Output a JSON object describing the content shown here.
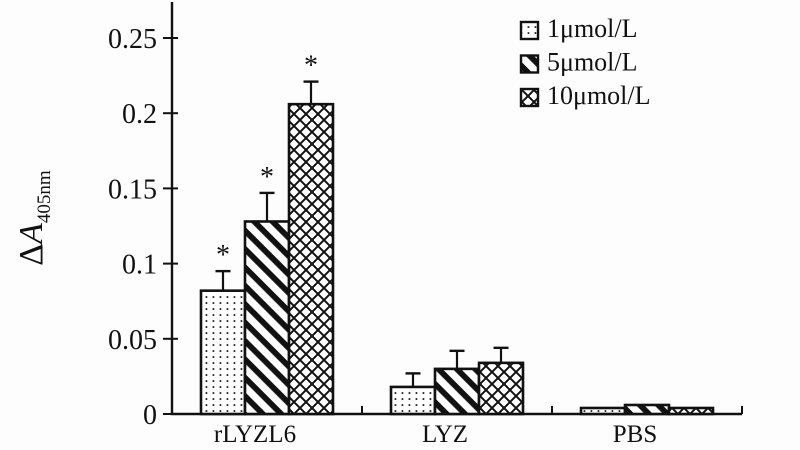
{
  "figure": {
    "background": "#fdfdfd",
    "ink": "#111111"
  },
  "chart_data": {
    "type": "bar",
    "title": "",
    "xlabel": "",
    "ylabel": "ΔA",
    "ylabel_subscript": "405nm",
    "categories": [
      "rLYZL6",
      "LYZ",
      "PBS"
    ],
    "series": [
      {
        "name": "1μmol/L",
        "pattern": "dots",
        "values": [
          0.082,
          0.018,
          0.004
        ],
        "errors": [
          0.013,
          0.009,
          0
        ],
        "sig": [
          "*",
          "",
          ""
        ]
      },
      {
        "name": "5μmol/L",
        "pattern": "diagonal",
        "values": [
          0.128,
          0.03,
          0.006
        ],
        "errors": [
          0.019,
          0.012,
          0
        ],
        "sig": [
          "*",
          "",
          ""
        ]
      },
      {
        "name": "10μmol/L",
        "pattern": "crosshatch",
        "values": [
          0.206,
          0.034,
          0.004
        ],
        "errors": [
          0.015,
          0.01,
          0
        ],
        "sig": [
          "*",
          "",
          ""
        ]
      }
    ],
    "yticks": [
      0,
      0.05,
      0.1,
      0.15,
      0.2,
      0.25
    ],
    "ytick_labels": [
      "0",
      "0.05",
      "0.1",
      "0.15",
      "0.2",
      "0.25"
    ],
    "ylim": [
      0,
      0.272
    ],
    "grid": false,
    "legend_position": "top-right",
    "significance_symbol": "*",
    "significance_note": "asterisks above all rLYZL6 bars"
  }
}
